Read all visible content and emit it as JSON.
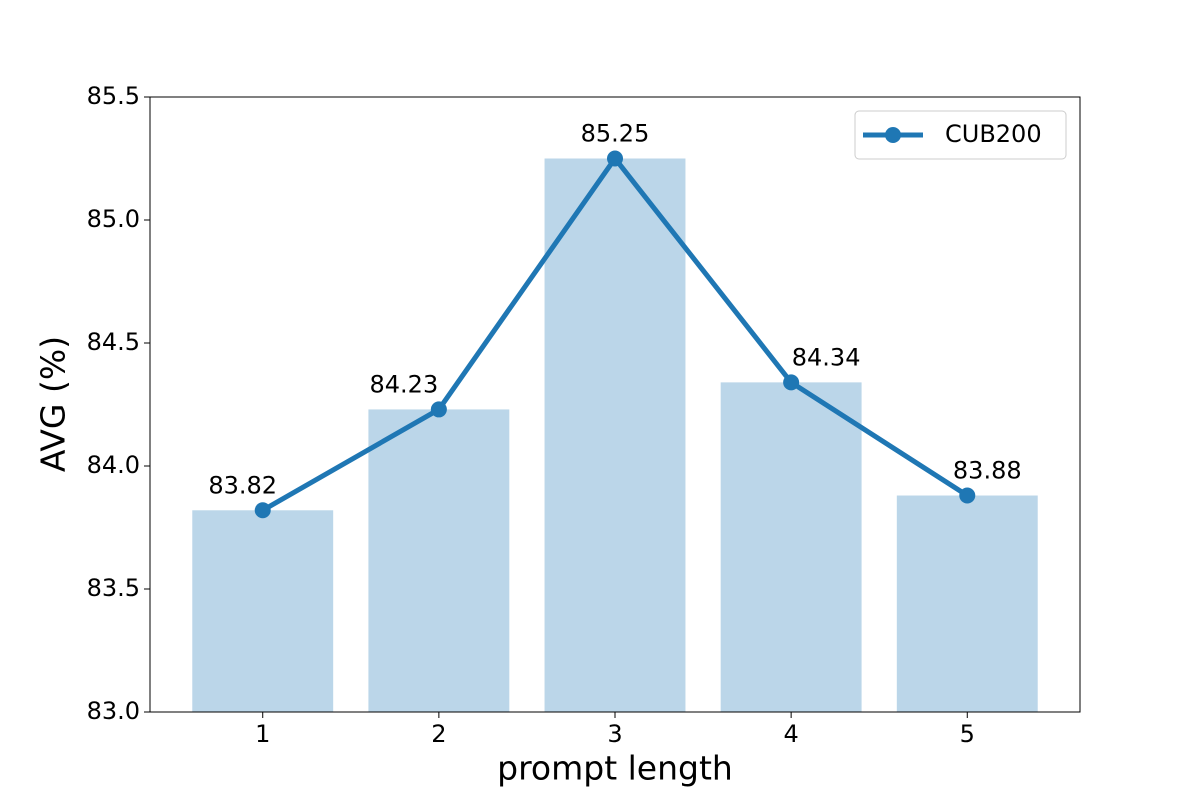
{
  "chart_data": {
    "type": "bar_line",
    "xlabel": "prompt length",
    "ylabel": "AVG (%)",
    "categories": [
      "1",
      "2",
      "3",
      "4",
      "5"
    ],
    "series": [
      {
        "name": "CUB200",
        "color": "#1f77b4",
        "values": [
          83.82,
          84.23,
          85.25,
          84.34,
          83.88
        ]
      }
    ],
    "bar_color": "#bbd6e9",
    "ylim": [
      83.0,
      85.5
    ],
    "yticks": [
      {
        "value": 83.0,
        "label": "83.0"
      },
      {
        "value": 83.5,
        "label": "83.5"
      },
      {
        "value": 84.0,
        "label": "84.0"
      },
      {
        "value": 84.5,
        "label": "84.5"
      },
      {
        "value": 85.0,
        "label": "85.0"
      },
      {
        "value": 85.5,
        "label": "85.5"
      }
    ],
    "legend": "upper right"
  }
}
